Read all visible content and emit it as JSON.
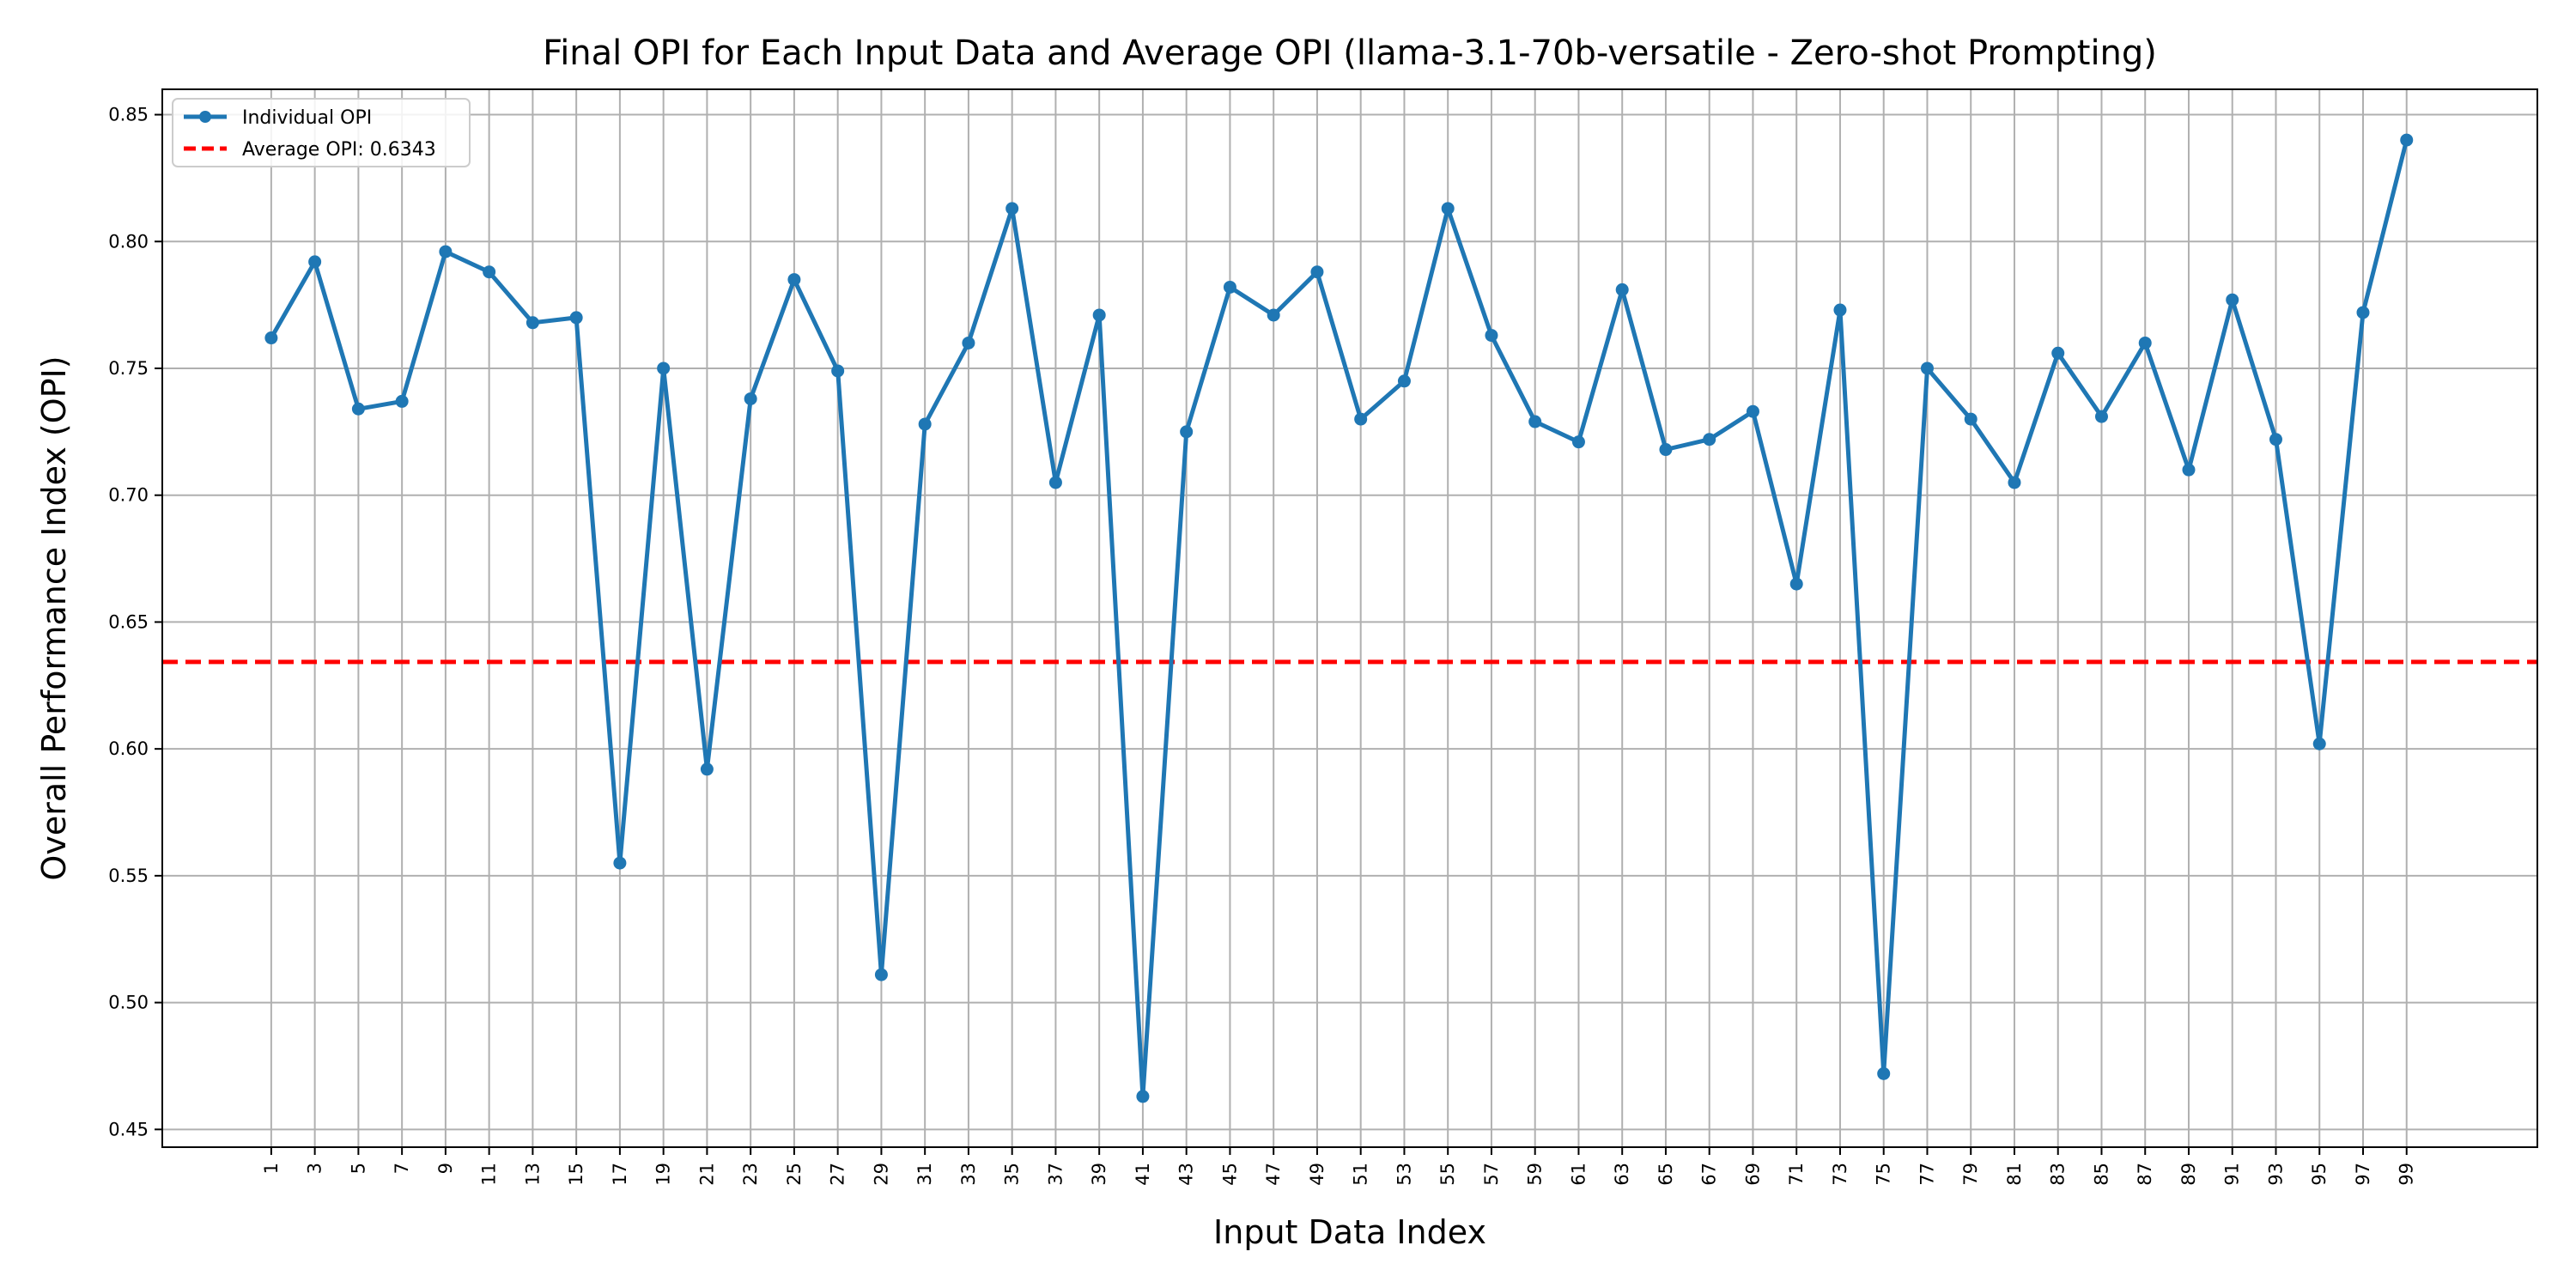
{
  "chart_data": {
    "type": "line",
    "title": "Final OPI for Each Input Data and Average OPI (llama-3.1-70b-versatile - Zero-shot Prompting)",
    "xlabel": "Input Data Index",
    "ylabel": "Overall Performance Index (OPI)",
    "x": [
      1,
      3,
      5,
      7,
      9,
      11,
      13,
      15,
      17,
      19,
      21,
      23,
      25,
      27,
      29,
      31,
      33,
      35,
      37,
      39,
      41,
      43,
      45,
      47,
      49,
      51,
      53,
      55,
      57,
      59,
      61,
      63,
      65,
      67,
      69,
      71,
      73,
      75,
      77,
      79,
      81,
      83,
      85,
      87,
      89,
      91,
      93,
      95,
      97,
      99
    ],
    "xlim": [
      -4,
      105
    ],
    "ylim": [
      0.443,
      0.86
    ],
    "yticks": [
      0.45,
      0.5,
      0.55,
      0.6,
      0.65,
      0.7,
      0.75,
      0.8,
      0.85
    ],
    "ytick_labels": [
      "0.45",
      "0.50",
      "0.55",
      "0.60",
      "0.65",
      "0.70",
      "0.75",
      "0.80",
      "0.85"
    ],
    "grid": true,
    "legend_position": "upper-left",
    "series": [
      {
        "name": "Individual OPI",
        "color": "#1f77b4",
        "marker": "circle",
        "values": [
          0.762,
          0.792,
          0.734,
          0.737,
          0.796,
          0.788,
          0.768,
          0.77,
          0.555,
          0.75,
          0.592,
          0.738,
          0.785,
          0.749,
          0.511,
          0.728,
          0.76,
          0.813,
          0.705,
          0.771,
          0.463,
          0.725,
          0.782,
          0.771,
          0.788,
          0.73,
          0.745,
          0.813,
          0.763,
          0.729,
          0.721,
          0.781,
          0.718,
          0.722,
          0.733,
          0.665,
          0.773,
          0.472,
          0.75,
          0.73,
          0.705,
          0.756,
          0.731,
          0.76,
          0.71,
          0.777,
          0.722,
          0.602,
          0.772,
          0.84
        ]
      }
    ],
    "reference_lines": [
      {
        "name": "Average OPI: 0.6343",
        "value": 0.6343,
        "color": "#ff0000",
        "style": "dashed"
      }
    ]
  }
}
